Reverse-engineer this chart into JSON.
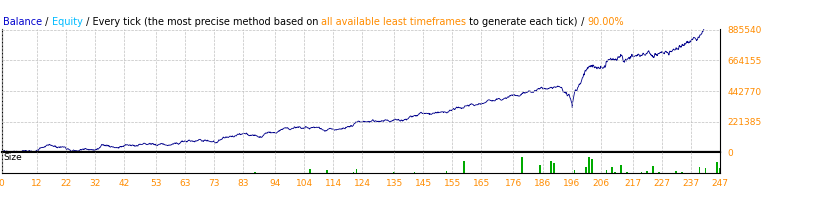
{
  "title_parts": [
    {
      "text": "Balance",
      "color": "#0000CC"
    },
    {
      "text": " / ",
      "color": "#000000"
    },
    {
      "text": "Equity",
      "color": "#00AAFF"
    },
    {
      "text": " / Every tick (the most precise method based on ",
      "color": "#000000"
    },
    {
      "text": "all available least timeframes",
      "color": "#FF8C00"
    },
    {
      "text": " to generate each tick)",
      "color": "#000000"
    },
    {
      "text": " / ",
      "color": "#000000"
    },
    {
      "text": "90.00%",
      "color": "#FF8C00"
    }
  ],
  "x_ticks": [
    0,
    12,
    22,
    32,
    42,
    53,
    63,
    73,
    83,
    94,
    104,
    114,
    124,
    135,
    145,
    155,
    165,
    176,
    186,
    196,
    206,
    217,
    227,
    237,
    247
  ],
  "y_ticks": [
    0,
    221385,
    442770,
    664155,
    885540
  ],
  "y_max": 885540,
  "y_min": 0,
  "x_min": 0,
  "x_max": 247,
  "line_color": "#00008B",
  "grid_color": "#C0C0C0",
  "bg_color": "#FFFFFF",
  "size_label": "Size",
  "size_bar_color": "#00AA00",
  "border_color": "#000000",
  "title_fontsize": 7,
  "tick_fontsize": 6.5,
  "tick_color": "#FF8C00",
  "y_tick_color": "#FF8C00",
  "x_tick_color": "#FF8C00"
}
